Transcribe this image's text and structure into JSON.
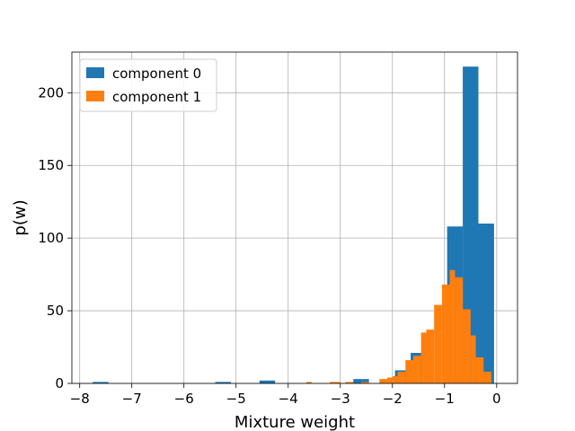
{
  "chart_data": {
    "type": "bar",
    "subtype": "histogram",
    "title": "",
    "xlabel": "Mixture weight",
    "ylabel": "p(w)",
    "xlim": [
      -8.15,
      0.4
    ],
    "ylim": [
      0,
      228
    ],
    "xticks": [
      -8,
      -7,
      -6,
      -5,
      -4,
      -3,
      -2,
      -1,
      0
    ],
    "xtick_labels": [
      "−8",
      "−7",
      "−6",
      "−5",
      "−4",
      "−3",
      "−2",
      "−1",
      "0"
    ],
    "yticks": [
      0,
      50,
      100,
      150,
      200
    ],
    "ytick_labels": [
      "0",
      "50",
      "100",
      "150",
      "200"
    ],
    "grid": true,
    "legend_position": "top-left",
    "series": [
      {
        "name": "component 0",
        "color": "#1f77b4",
        "bins": [
          {
            "x0": -7.75,
            "x1": -7.45,
            "y": 1
          },
          {
            "x0": -5.4,
            "x1": -5.1,
            "y": 1
          },
          {
            "x0": -4.55,
            "x1": -4.25,
            "y": 2
          },
          {
            "x0": -2.75,
            "x1": -2.45,
            "y": 3
          },
          {
            "x0": -1.95,
            "x1": -1.65,
            "y": 9
          },
          {
            "x0": -1.65,
            "x1": -1.35,
            "y": 21
          },
          {
            "x0": -0.95,
            "x1": -0.65,
            "y": 108
          },
          {
            "x0": -0.65,
            "x1": -0.35,
            "y": 218
          },
          {
            "x0": -0.35,
            "x1": -0.05,
            "y": 110
          }
        ]
      },
      {
        "name": "component 1",
        "color": "#ff7f0e",
        "bins": [
          {
            "x0": -3.65,
            "x1": -3.55,
            "y": 1
          },
          {
            "x0": -3.2,
            "x1": -3.0,
            "y": 1
          },
          {
            "x0": -2.9,
            "x1": -2.75,
            "y": 1
          },
          {
            "x0": -2.6,
            "x1": -2.45,
            "y": 1
          },
          {
            "x0": -2.25,
            "x1": -2.1,
            "y": 3
          },
          {
            "x0": -2.1,
            "x1": -2.0,
            "y": 4
          },
          {
            "x0": -2.0,
            "x1": -1.9,
            "y": 5
          },
          {
            "x0": -1.9,
            "x1": -1.75,
            "y": 8
          },
          {
            "x0": -1.75,
            "x1": -1.6,
            "y": 16
          },
          {
            "x0": -1.6,
            "x1": -1.45,
            "y": 19
          },
          {
            "x0": -1.45,
            "x1": -1.35,
            "y": 35
          },
          {
            "x0": -1.35,
            "x1": -1.2,
            "y": 37
          },
          {
            "x0": -1.2,
            "x1": -1.05,
            "y": 54
          },
          {
            "x0": -1.05,
            "x1": -0.9,
            "y": 68
          },
          {
            "x0": -0.9,
            "x1": -0.8,
            "y": 78
          },
          {
            "x0": -0.8,
            "x1": -0.65,
            "y": 73
          },
          {
            "x0": -0.65,
            "x1": -0.5,
            "y": 51
          },
          {
            "x0": -0.5,
            "x1": -0.4,
            "y": 33
          },
          {
            "x0": -0.4,
            "x1": -0.25,
            "y": 18
          },
          {
            "x0": -0.25,
            "x1": -0.1,
            "y": 8
          }
        ]
      }
    ]
  }
}
